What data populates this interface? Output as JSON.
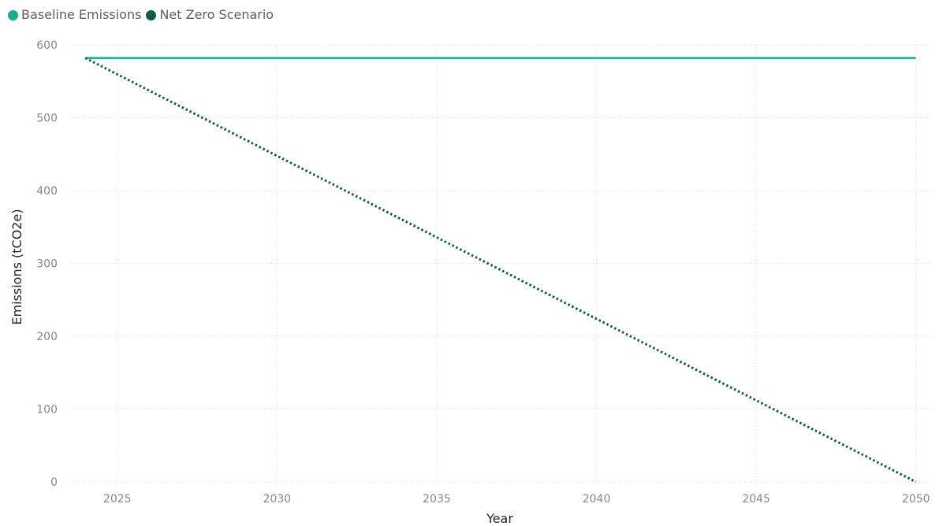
{
  "chart_data": {
    "type": "line",
    "xlabel": "Year",
    "ylabel": "Emissions (tCO2e)",
    "xlim": [
      2023.5,
      2050.5
    ],
    "ylim": [
      0,
      600
    ],
    "x_ticks": [
      2025,
      2030,
      2035,
      2040,
      2045,
      2050
    ],
    "y_ticks": [
      0,
      100,
      200,
      300,
      400,
      500,
      600
    ],
    "grid": true,
    "legend_position": "top-left",
    "series": [
      {
        "name": "Baseline Emissions",
        "color": "#1aab8a",
        "style": "solid",
        "x": [
          2024,
          2050
        ],
        "y": [
          582,
          582
        ]
      },
      {
        "name": "Net Zero Scenario",
        "color": "#0f5c4a",
        "style": "dotted",
        "x": [
          2024,
          2050
        ],
        "y": [
          582,
          0
        ]
      }
    ]
  }
}
